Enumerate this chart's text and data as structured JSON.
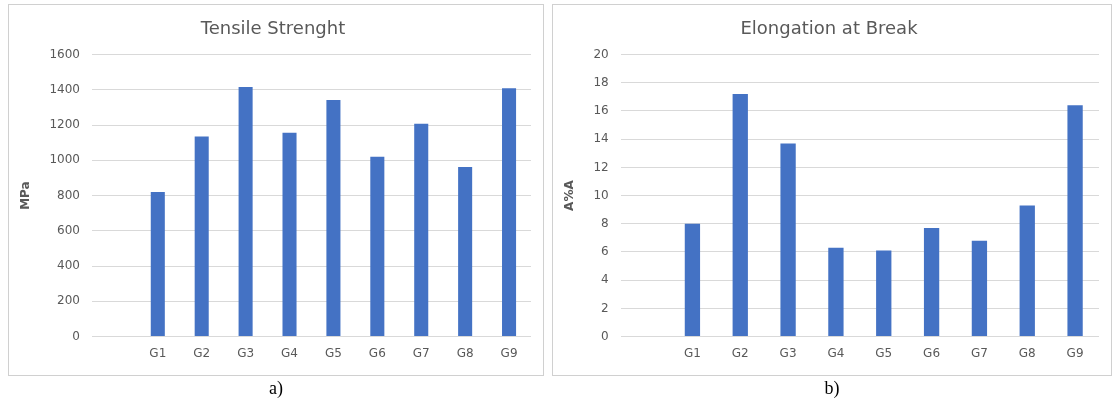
{
  "chart_data": [
    {
      "type": "bar",
      "title": "Tensile Strenght",
      "ylabel": "MPa",
      "categories": [
        null,
        "G1",
        "G2",
        "G3",
        "G4",
        "G5",
        "G6",
        "G7",
        "G8",
        "G9"
      ],
      "values": [
        null,
        820,
        1135,
        1416,
        1156,
        1343,
        1021,
        1208,
        962,
        1409
      ],
      "color": "#4472c4",
      "ylim": [
        0,
        1600
      ],
      "yticks": [
        0,
        200,
        400,
        600,
        800,
        1000,
        1200,
        1400,
        1600
      ],
      "grid": "y",
      "legend": false,
      "annotations": [
        "a)"
      ]
    },
    {
      "type": "bar",
      "title": "Elongation at Break",
      "ylabel": "A%A",
      "categories": [
        null,
        "G1",
        "G2",
        "G3",
        "G4",
        "G5",
        "G6",
        "G7",
        "G8",
        "G9"
      ],
      "values": [
        null,
        8.0,
        17.2,
        13.7,
        6.3,
        6.1,
        7.7,
        6.8,
        9.3,
        16.4
      ],
      "color": "#4472c4",
      "ylim": [
        0,
        20
      ],
      "yticks": [
        0,
        2,
        4,
        6,
        8,
        10,
        12,
        14,
        16,
        18,
        20
      ],
      "grid": "y",
      "legend": false,
      "annotations": [
        "b)"
      ]
    }
  ]
}
